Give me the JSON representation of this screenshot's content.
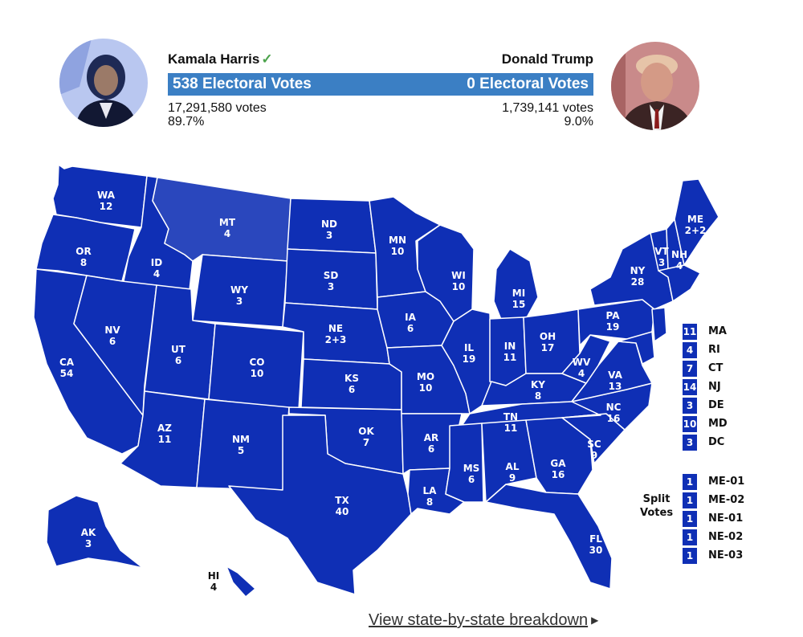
{
  "candidates": {
    "harris": {
      "name": "Kamala Harris",
      "electoral_votes": "538 Electoral Votes",
      "votes": "17,291,580 votes",
      "percent": "89.7%",
      "winner_icon": "check-icon",
      "photo": "harris-portrait"
    },
    "trump": {
      "name": "Donald Trump",
      "electoral_votes": "0 Electoral Votes",
      "votes": "1,739,141 votes",
      "percent": "9.0%",
      "photo": "trump-portrait"
    }
  },
  "colors": {
    "harris_state": "#0f2fb5",
    "montana": "#2a47bd",
    "bar": "#3b7fc4",
    "border": "#ffffff"
  },
  "states": [
    {
      "abbr": "WA",
      "ev": "12"
    },
    {
      "abbr": "OR",
      "ev": "8"
    },
    {
      "abbr": "CA",
      "ev": "54"
    },
    {
      "abbr": "ID",
      "ev": "4"
    },
    {
      "abbr": "NV",
      "ev": "6"
    },
    {
      "abbr": "MT",
      "ev": "4"
    },
    {
      "abbr": "WY",
      "ev": "3"
    },
    {
      "abbr": "UT",
      "ev": "6"
    },
    {
      "abbr": "AZ",
      "ev": "11"
    },
    {
      "abbr": "CO",
      "ev": "10"
    },
    {
      "abbr": "NM",
      "ev": "5"
    },
    {
      "abbr": "ND",
      "ev": "3"
    },
    {
      "abbr": "SD",
      "ev": "3"
    },
    {
      "abbr": "NE",
      "ev": "2+3"
    },
    {
      "abbr": "KS",
      "ev": "6"
    },
    {
      "abbr": "OK",
      "ev": "7"
    },
    {
      "abbr": "TX",
      "ev": "40"
    },
    {
      "abbr": "MN",
      "ev": "10"
    },
    {
      "abbr": "IA",
      "ev": "6"
    },
    {
      "abbr": "MO",
      "ev": "10"
    },
    {
      "abbr": "AR",
      "ev": "6"
    },
    {
      "abbr": "LA",
      "ev": "8"
    },
    {
      "abbr": "WI",
      "ev": "10"
    },
    {
      "abbr": "IL",
      "ev": "19"
    },
    {
      "abbr": "MI",
      "ev": "15"
    },
    {
      "abbr": "IN",
      "ev": "11"
    },
    {
      "abbr": "OH",
      "ev": "17"
    },
    {
      "abbr": "KY",
      "ev": "8"
    },
    {
      "abbr": "TN",
      "ev": "11"
    },
    {
      "abbr": "MS",
      "ev": "6"
    },
    {
      "abbr": "AL",
      "ev": "9"
    },
    {
      "abbr": "GA",
      "ev": "16"
    },
    {
      "abbr": "FL",
      "ev": "30"
    },
    {
      "abbr": "SC",
      "ev": "9"
    },
    {
      "abbr": "NC",
      "ev": "16"
    },
    {
      "abbr": "VA",
      "ev": "13"
    },
    {
      "abbr": "WV",
      "ev": "4"
    },
    {
      "abbr": "PA",
      "ev": "19"
    },
    {
      "abbr": "NY",
      "ev": "28"
    },
    {
      "abbr": "VT",
      "ev": "3"
    },
    {
      "abbr": "NH",
      "ev": "4"
    },
    {
      "abbr": "ME",
      "ev": "2+2"
    },
    {
      "abbr": "AK",
      "ev": "3"
    },
    {
      "abbr": "HI",
      "ev": "4"
    }
  ],
  "small_states": [
    {
      "ev": "11",
      "abbr": "MA"
    },
    {
      "ev": "4",
      "abbr": "RI"
    },
    {
      "ev": "7",
      "abbr": "CT"
    },
    {
      "ev": "14",
      "abbr": "NJ"
    },
    {
      "ev": "3",
      "abbr": "DE"
    },
    {
      "ev": "10",
      "abbr": "MD"
    },
    {
      "ev": "3",
      "abbr": "DC"
    }
  ],
  "split_votes": {
    "label_line1": "Split",
    "label_line2": "Votes",
    "items": [
      {
        "ev": "1",
        "abbr": "ME-01"
      },
      {
        "ev": "1",
        "abbr": "ME-02"
      },
      {
        "ev": "1",
        "abbr": "NE-01"
      },
      {
        "ev": "1",
        "abbr": "NE-02"
      },
      {
        "ev": "1",
        "abbr": "NE-03"
      }
    ]
  },
  "breakdown_link": "View state-by-state breakdown"
}
